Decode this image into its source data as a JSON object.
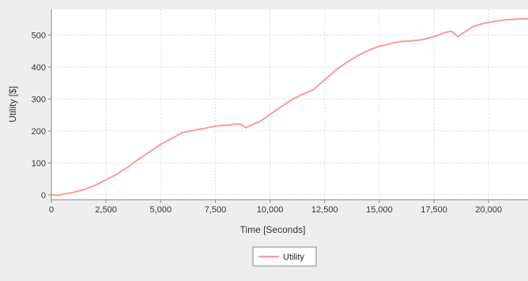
{
  "chart_data": {
    "type": "line",
    "xlabel": "Time [Seconds]",
    "ylabel": "Utility [$]",
    "xlim": [
      0,
      21800
    ],
    "ylim": [
      -15,
      580
    ],
    "x_ticks": [
      0,
      2500,
      5000,
      7500,
      10000,
      12500,
      15000,
      17500,
      20000
    ],
    "x_tick_labels": [
      "0",
      "2,500",
      "5,000",
      "7,500",
      "10,000",
      "12,500",
      "15,000",
      "17,500",
      "20,000"
    ],
    "y_ticks": [
      0,
      100,
      200,
      300,
      400,
      500
    ],
    "y_tick_labels": [
      "0",
      "100",
      "200",
      "300",
      "400",
      "500"
    ],
    "grid": true,
    "legend_position": "bottom-center",
    "series": [
      {
        "name": "Utility",
        "color": "#ff9999",
        "x": [
          0,
          300,
          600,
          1000,
          1500,
          2000,
          2500,
          3000,
          3500,
          4000,
          4500,
          5000,
          5500,
          6000,
          6500,
          7000,
          7500,
          8000,
          8500,
          8700,
          8900,
          9200,
          9600,
          10000,
          10500,
          11000,
          11500,
          12000,
          12500,
          13000,
          13500,
          14000,
          14500,
          15000,
          15500,
          16000,
          16500,
          17000,
          17500,
          18000,
          18300,
          18600,
          18800,
          19300,
          19800,
          20300,
          20800,
          21300,
          21800
        ],
        "values": [
          0,
          -2,
          3,
          8,
          17,
          30,
          47,
          65,
          87,
          112,
          135,
          158,
          176,
          195,
          202,
          208,
          215,
          218,
          222,
          220,
          210,
          220,
          232,
          252,
          275,
          298,
          315,
          330,
          360,
          390,
          414,
          435,
          452,
          465,
          473,
          480,
          482,
          486,
          495,
          508,
          512,
          495,
          505,
          527,
          537,
          543,
          548,
          550,
          551
        ]
      }
    ]
  }
}
